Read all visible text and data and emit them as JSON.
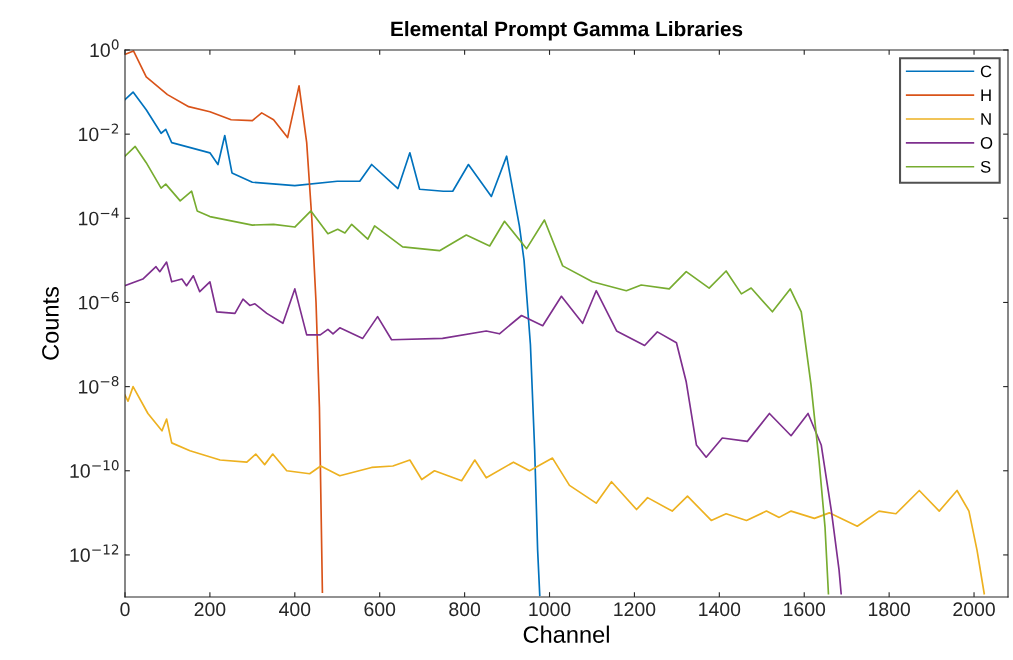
{
  "chart_data": {
    "type": "line",
    "title": "Elemental Prompt Gamma Libraries",
    "xlabel": "Channel",
    "ylabel": "Counts",
    "log": "y",
    "grid": false,
    "legend": "top right",
    "line_style": "solid",
    "marker": "none",
    "xlim": [
      0,
      2080
    ],
    "xticks": [
      0,
      200,
      400,
      600,
      800,
      1000,
      1200,
      1400,
      1600,
      1800,
      2000
    ],
    "ylim": [
      1e-13,
      1
    ],
    "yticks": [
      {
        "value": 1e-12,
        "label": "10$^{−12}$"
      },
      {
        "value": 1e-10,
        "label": "10$^{−10}$"
      },
      {
        "value": 1e-08,
        "label": "10$^{−8}$"
      },
      {
        "value": 1e-06,
        "label": "10$^{−6}$"
      },
      {
        "value": 0.0001,
        "label": "10$^{−4}$"
      },
      {
        "value": 0.01,
        "label": "10$^{−2}$"
      },
      {
        "value": 1,
        "label": "10$^{0}$"
      }
    ],
    "series": [
      {
        "name": "C",
        "color": "#0072bd",
        "x": [
          0,
          19,
          50,
          85,
          96,
          110,
          200,
          219,
          235,
          252,
          300,
          400,
          500,
          553,
          581,
          643,
          671,
          694,
          750,
          772,
          809,
          863,
          899,
          929,
          940,
          955,
          965,
          972,
          977
        ],
        "values": [
          0.066,
          0.1,
          0.038,
          0.0105,
          0.013,
          0.0063,
          0.0036,
          0.0019,
          0.0093,
          0.0012,
          0.00072,
          0.0006,
          0.00076,
          0.00076,
          0.0019,
          0.00051,
          0.0036,
          0.00049,
          0.00044,
          0.00044,
          0.0019,
          0.00033,
          0.003,
          6.6e-05,
          1e-05,
          1e-07,
          3.2e-10,
          1.3e-12,
          1.1e-13
        ]
      },
      {
        "name": "H",
        "color": "#d95319",
        "x": [
          0,
          20,
          50,
          100,
          150,
          200,
          250,
          300,
          322,
          350,
          383,
          410,
          428,
          440,
          450,
          458,
          465
        ],
        "values": [
          0.79,
          0.95,
          0.23,
          0.087,
          0.045,
          0.034,
          0.022,
          0.021,
          0.032,
          0.022,
          0.0083,
          0.14,
          0.0063,
          0.0001,
          1e-06,
          3.2e-09,
          1.3e-13
        ]
      },
      {
        "name": "N",
        "color": "#edb120",
        "x": [
          0,
          7,
          19,
          54,
          87,
          98,
          110,
          153,
          224,
          287,
          308,
          329,
          348,
          381,
          435,
          461,
          506,
          581,
          631,
          671,
          699,
          729,
          793,
          824,
          851,
          915,
          953,
          1007,
          1047,
          1110,
          1146,
          1205,
          1231,
          1289,
          1325,
          1381,
          1416,
          1464,
          1511,
          1541,
          1569,
          1624,
          1659,
          1725,
          1776,
          1816,
          1871,
          1918,
          1960,
          1988,
          2007,
          2024
        ],
        "values": [
          6.3e-09,
          4.5e-09,
          1e-08,
          2.3e-09,
          8.9e-10,
          1.7e-09,
          4.6e-10,
          3e-10,
          1.8e-10,
          1.6e-10,
          2.5e-10,
          1.4e-10,
          2.5e-10,
          1e-10,
          8.5e-11,
          1.3e-10,
          7.6e-11,
          1.2e-10,
          1.3e-10,
          1.8e-10,
          6.2e-11,
          1e-10,
          5.8e-11,
          1.8e-10,
          6.8e-11,
          1.6e-10,
          1e-10,
          2e-10,
          4.5e-11,
          1.7e-11,
          5.5e-11,
          1.2e-11,
          2.3e-11,
          1.1e-11,
          2.5e-11,
          6.6e-12,
          9.5e-12,
          6.6e-12,
          1.1e-11,
          7.8e-12,
          1.1e-11,
          7.4e-12,
          1e-11,
          4.8e-12,
          1.1e-11,
          9.5e-12,
          3.4e-11,
          1.1e-11,
          3.4e-11,
          1.1e-11,
          1.3e-12,
          1.2e-13
        ]
      },
      {
        "name": "O",
        "color": "#7e2f8e",
        "x": [
          0,
          42,
          73,
          82,
          98,
          110,
          134,
          145,
          161,
          176,
          200,
          216,
          259,
          278,
          294,
          306,
          334,
          372,
          400,
          428,
          460,
          478,
          490,
          506,
          560,
          595,
          628,
          748,
          851,
          882,
          934,
          984,
          1028,
          1078,
          1110,
          1158,
          1224,
          1254,
          1299,
          1322,
          1346,
          1369,
          1407,
          1466,
          1518,
          1569,
          1609,
          1640,
          1664,
          1682,
          1687
        ],
        "values": [
          2.5e-06,
          3.6e-06,
          7.1e-06,
          5.4e-06,
          9.1e-06,
          3.1e-06,
          3.6e-06,
          2.5e-06,
          4.3e-06,
          1.8e-06,
          3.1e-06,
          6e-07,
          5.5e-07,
          1.2e-06,
          8.5e-07,
          9.3e-07,
          5.5e-07,
          3.2e-07,
          2.1e-06,
          1.7e-07,
          1.7e-07,
          2.3e-07,
          1.8e-07,
          2.5e-07,
          1.4e-07,
          4.6e-07,
          1.3e-07,
          1.4e-07,
          2.1e-07,
          1.8e-07,
          4.9e-07,
          2.8e-07,
          1.4e-06,
          3.2e-07,
          1.9e-06,
          2.1e-07,
          9.5e-08,
          2e-07,
          1.1e-07,
          1.3e-08,
          4.1e-10,
          2.1e-10,
          6e-10,
          5e-10,
          2.3e-09,
          6.8e-10,
          2.3e-09,
          4.1e-10,
          1.1e-11,
          4.4e-13,
          1.2e-13
        ]
      },
      {
        "name": "S",
        "color": "#77ac30",
        "x": [
          0,
          24,
          50,
          85,
          96,
          130,
          157,
          170,
          200,
          300,
          350,
          400,
          438,
          478,
          501,
          518,
          534,
          572,
          588,
          654,
          741,
          804,
          859,
          894,
          946,
          988,
          1031,
          1101,
          1181,
          1216,
          1282,
          1322,
          1376,
          1416,
          1452,
          1475,
          1525,
          1567,
          1593,
          1616,
          1635,
          1649,
          1657
        ],
        "values": [
          0.003,
          0.0051,
          0.0021,
          0.00052,
          0.00065,
          0.00026,
          0.00044,
          0.00015,
          0.00011,
          6.9e-05,
          7.2e-05,
          6.2e-05,
          0.00015,
          4.3e-05,
          5.5e-05,
          4.5e-05,
          7.2e-05,
          3.2e-05,
          6.6e-05,
          2.1e-05,
          1.7e-05,
          4e-05,
          2.2e-05,
          8.5e-05,
          1.9e-05,
          9.1e-05,
          7.4e-06,
          3.1e-06,
          1.9e-06,
          2.6e-06,
          2.1e-06,
          5.4e-06,
          2.2e-06,
          5.6e-06,
          1.6e-06,
          2.2e-06,
          6e-07,
          2.1e-06,
          6e-07,
          1.1e-08,
          1.7e-10,
          4.5e-12,
          1.2e-13
        ]
      }
    ]
  }
}
